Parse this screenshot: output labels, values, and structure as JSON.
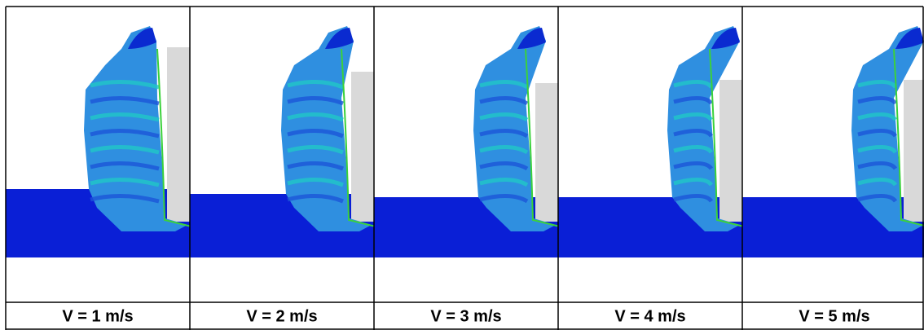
{
  "panels": [
    {
      "caption": "V = 1 m/s"
    },
    {
      "caption": "V = 2 m/s"
    },
    {
      "caption": "V = 3 m/s"
    },
    {
      "caption": "V = 4 m/s"
    },
    {
      "caption": "V = 5 m/s"
    }
  ]
}
